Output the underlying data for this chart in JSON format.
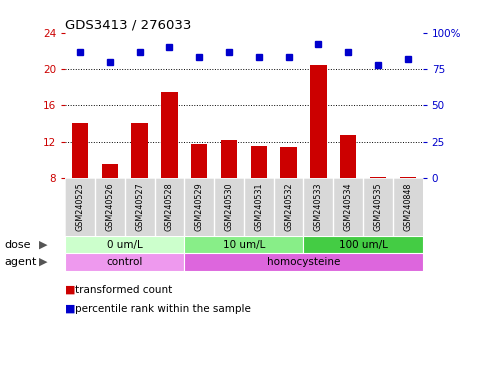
{
  "title": "GDS3413 / 276033",
  "samples": [
    "GSM240525",
    "GSM240526",
    "GSM240527",
    "GSM240528",
    "GSM240529",
    "GSM240530",
    "GSM240531",
    "GSM240532",
    "GSM240533",
    "GSM240534",
    "GSM240535",
    "GSM240848"
  ],
  "transformed_count": [
    14.0,
    9.5,
    14.0,
    17.5,
    11.7,
    12.2,
    11.5,
    11.4,
    20.4,
    12.7,
    8.1,
    8.1
  ],
  "percentile_rank": [
    87,
    80,
    87,
    90,
    83,
    87,
    83,
    83,
    92,
    87,
    78,
    82
  ],
  "ylim_left": [
    8,
    24
  ],
  "yticks_left": [
    8,
    12,
    16,
    20,
    24
  ],
  "ylim_right": [
    0,
    100
  ],
  "yticks_right": [
    0,
    25,
    50,
    75,
    100
  ],
  "bar_color": "#cc0000",
  "dot_color": "#0000cc",
  "bar_bottom": 8,
  "dose_groups": [
    {
      "label": "0 um/L",
      "start": 0,
      "end": 4,
      "color": "#ccffcc"
    },
    {
      "label": "10 um/L",
      "start": 4,
      "end": 8,
      "color": "#88ee88"
    },
    {
      "label": "100 um/L",
      "start": 8,
      "end": 12,
      "color": "#44cc44"
    }
  ],
  "agent_groups": [
    {
      "label": "control",
      "start": 0,
      "end": 4,
      "color": "#ee99ee"
    },
    {
      "label": "homocysteine",
      "start": 4,
      "end": 12,
      "color": "#dd66dd"
    }
  ],
  "dose_label": "dose",
  "agent_label": "agent",
  "legend_bar_label": "transformed count",
  "legend_dot_label": "percentile rank within the sample",
  "tick_label_color_left": "#cc0000",
  "tick_label_color_right": "#0000cc",
  "background_color": "#ffffff",
  "sample_bg_color": "#d8d8d8"
}
